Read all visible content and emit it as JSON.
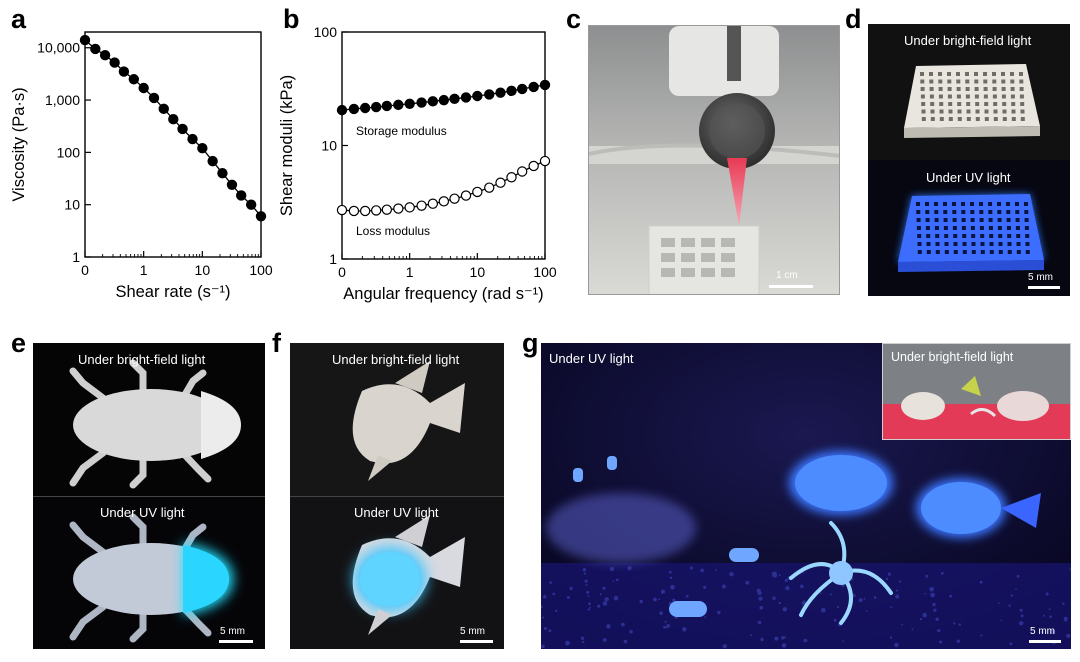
{
  "panels": {
    "a": {
      "label": "a"
    },
    "b": {
      "label": "b"
    },
    "c": {
      "label": "c",
      "scalebar": "1 cm"
    },
    "d": {
      "label": "d",
      "top_caption": "Under bright-field light",
      "bottom_caption": "Under UV light",
      "scalebar": "5 mm"
    },
    "e": {
      "label": "e",
      "top_caption": "Under bright-field light",
      "bottom_caption": "Under UV light",
      "scalebar": "5 mm"
    },
    "f": {
      "label": "f",
      "top_caption": "Under bright-field light",
      "bottom_caption": "Under UV light",
      "scalebar": "5 mm"
    },
    "g": {
      "label": "g",
      "main_caption": "Under UV light",
      "inset_caption": "Under bright-field light",
      "scalebar": "5 mm"
    }
  },
  "colors": {
    "uv_glow": "#2f5bff",
    "nozzle_light": "#e83a55",
    "photo_dark": "#0b0b12",
    "uv_bg": "#0a0830"
  },
  "chart_data": [
    {
      "type": "line",
      "xlabel": "Shear rate (s⁻¹)",
      "ylabel": "Viscosity (Pa·s)",
      "xscale": "log",
      "yscale": "log",
      "x_ticks": [
        "0",
        "1",
        "10",
        "100"
      ],
      "y_ticks": [
        "1",
        "10",
        "100",
        "1,000",
        "10,000"
      ],
      "xlim": [
        0.1,
        100
      ],
      "ylim": [
        1,
        20000
      ],
      "series": [
        {
          "marker": "filled-circle",
          "x": [
            0.1,
            0.15,
            0.22,
            0.32,
            0.46,
            0.68,
            1.0,
            1.5,
            2.2,
            3.2,
            4.6,
            6.8,
            10,
            15,
            22,
            32,
            46,
            68,
            100
          ],
          "y": [
            14000,
            9500,
            7200,
            5200,
            3500,
            2500,
            1700,
            1100,
            680,
            430,
            280,
            180,
            120,
            68,
            40,
            24,
            15,
            10,
            6
          ]
        }
      ]
    },
    {
      "type": "line",
      "xlabel": "Angular frequency (rad s⁻¹)",
      "ylabel": "Shear moduli (kPa)",
      "xscale": "log",
      "yscale": "log",
      "x_ticks": [
        "0",
        "1",
        "10",
        "100"
      ],
      "y_ticks": [
        "1",
        "10",
        "100"
      ],
      "xlim": [
        0.1,
        100
      ],
      "ylim": [
        1,
        100
      ],
      "annotations": [
        "Storage modulus",
        "Loss modulus"
      ],
      "series": [
        {
          "marker": "filled-circle",
          "x": [
            0.1,
            0.15,
            0.22,
            0.32,
            0.46,
            0.68,
            1.0,
            1.5,
            2.2,
            3.2,
            4.6,
            6.8,
            10,
            15,
            22,
            32,
            46,
            68,
            100
          ],
          "y": [
            20.5,
            21.0,
            21.4,
            21.8,
            22.3,
            22.8,
            23.3,
            23.9,
            24.5,
            25.1,
            25.8,
            26.5,
            27.3,
            28.2,
            29.2,
            30.3,
            31.5,
            32.8,
            34.2
          ]
        },
        {
          "marker": "open-circle",
          "x": [
            0.1,
            0.15,
            0.22,
            0.32,
            0.46,
            0.68,
            1.0,
            1.5,
            2.2,
            3.2,
            4.6,
            6.8,
            10,
            15,
            22,
            32,
            46,
            68,
            100
          ],
          "y": [
            2.7,
            2.65,
            2.65,
            2.68,
            2.72,
            2.78,
            2.85,
            2.95,
            3.07,
            3.22,
            3.4,
            3.62,
            3.9,
            4.25,
            4.7,
            5.25,
            5.9,
            6.6,
            7.3
          ]
        }
      ]
    }
  ]
}
